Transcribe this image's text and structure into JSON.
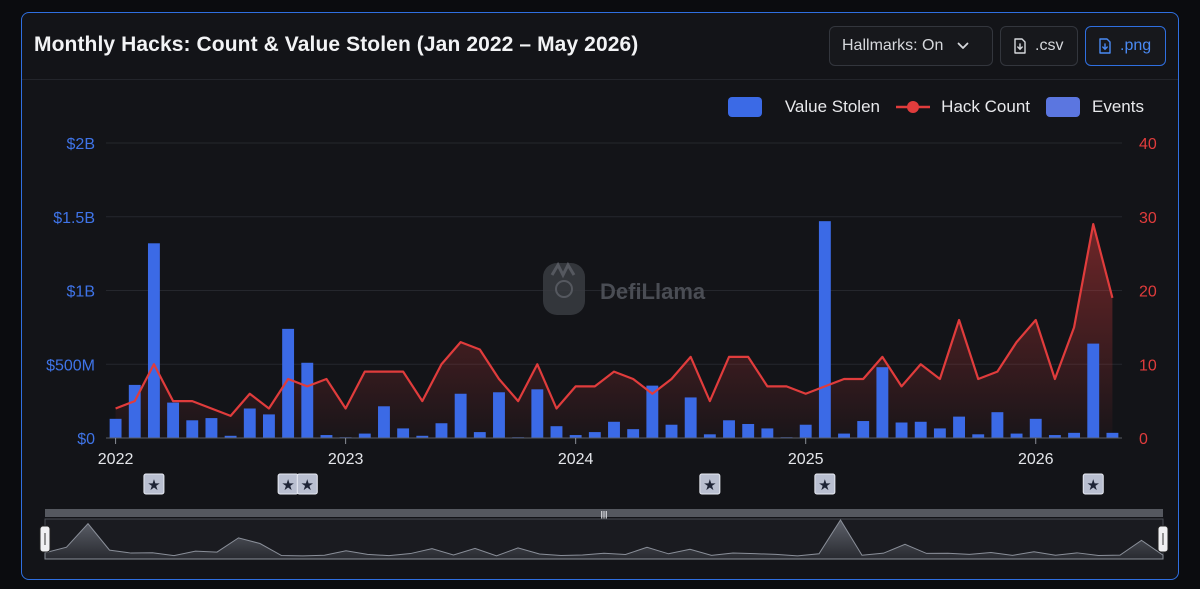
{
  "header": {
    "title": "Monthly Hacks: Count & Value Stolen (Jan 2022 – May 2026)",
    "hallmarks_label": "Hallmarks: On",
    "csv_label": ".csv",
    "png_label": ".png"
  },
  "watermark": "DefiLlama",
  "colors": {
    "value_bar": "#3b6ae6",
    "hack_line": "#e03c3c",
    "events": "#5b76e0",
    "accent_border": "#2f6fe0"
  },
  "chart_data": {
    "type": "bar",
    "title": "",
    "legend": [
      {
        "name": "Value Stolen",
        "marker": "box",
        "color": "#3b6ae6"
      },
      {
        "name": "Hack Count",
        "marker": "line",
        "color": "#e03c3c"
      },
      {
        "name": "Events",
        "marker": "box",
        "color": "#5b76e0"
      }
    ],
    "legend_position": "top-right",
    "x_ticks": [
      "2022",
      "2023",
      "2024",
      "2025",
      "2026"
    ],
    "y_left": {
      "ticks": [
        "$0",
        "$500M",
        "$1B",
        "$1.5B",
        "$2B"
      ],
      "tick_values": [
        0,
        500,
        1000,
        1500,
        2000
      ],
      "range": [
        0,
        2000
      ],
      "unit": "$M"
    },
    "y_right": {
      "ticks": [
        "0",
        "10",
        "20",
        "30",
        "40"
      ],
      "tick_values": [
        0,
        10,
        20,
        30,
        40
      ],
      "range": [
        0,
        40
      ]
    },
    "grid": true,
    "months": [
      "2022-01",
      "2022-02",
      "2022-03",
      "2022-04",
      "2022-05",
      "2022-06",
      "2022-07",
      "2022-08",
      "2022-09",
      "2022-10",
      "2022-11",
      "2022-12",
      "2023-01",
      "2023-02",
      "2023-03",
      "2023-04",
      "2023-05",
      "2023-06",
      "2023-07",
      "2023-08",
      "2023-09",
      "2023-10",
      "2023-11",
      "2023-12",
      "2024-01",
      "2024-02",
      "2024-03",
      "2024-04",
      "2024-05",
      "2024-06",
      "2024-07",
      "2024-08",
      "2024-09",
      "2024-10",
      "2024-11",
      "2024-12",
      "2025-01",
      "2025-02",
      "2025-03",
      "2025-04",
      "2025-05",
      "2025-06",
      "2025-07",
      "2025-08",
      "2025-09",
      "2025-10",
      "2025-11",
      "2025-12",
      "2026-01",
      "2026-02",
      "2026-03",
      "2026-04",
      "2026-05"
    ],
    "series": [
      {
        "name": "Value Stolen",
        "type": "bar",
        "axis": "left",
        "values": [
          130,
          360,
          1320,
          240,
          120,
          135,
          15,
          200,
          160,
          740,
          510,
          20,
          5,
          30,
          215,
          65,
          15,
          100,
          300,
          40,
          310,
          5,
          330,
          80,
          20,
          40,
          110,
          60,
          355,
          90,
          275,
          25,
          120,
          95,
          65,
          5,
          90,
          1470,
          30,
          115,
          480,
          105,
          110,
          65,
          145,
          25,
          175,
          30,
          130,
          20,
          35,
          640,
          35
        ]
      },
      {
        "name": "Hack Count",
        "type": "line",
        "axis": "right",
        "values": [
          4,
          5,
          10,
          5,
          5,
          4,
          3,
          6,
          4,
          8,
          7,
          8,
          4,
          9,
          9,
          9,
          5,
          10,
          13,
          12,
          8,
          5,
          10,
          4,
          7,
          7,
          9,
          8,
          6,
          8,
          11,
          5,
          11,
          11,
          7,
          7,
          6,
          7,
          8,
          8,
          11,
          7,
          10,
          8,
          16,
          8,
          9,
          13,
          16,
          8,
          15,
          29,
          19
        ]
      },
      {
        "name": "Events",
        "type": "marker",
        "markers": [
          {
            "month": "2022-03",
            "label": "★"
          },
          {
            "month": "2022-10",
            "label": "★"
          },
          {
            "month": "2022-11",
            "label": "★"
          },
          {
            "month": "2024-08",
            "label": "★"
          },
          {
            "month": "2025-02",
            "label": "★"
          },
          {
            "month": "2026-04",
            "label": "★"
          }
        ]
      }
    ]
  },
  "slider": {
    "handle_glyph": "|||"
  }
}
